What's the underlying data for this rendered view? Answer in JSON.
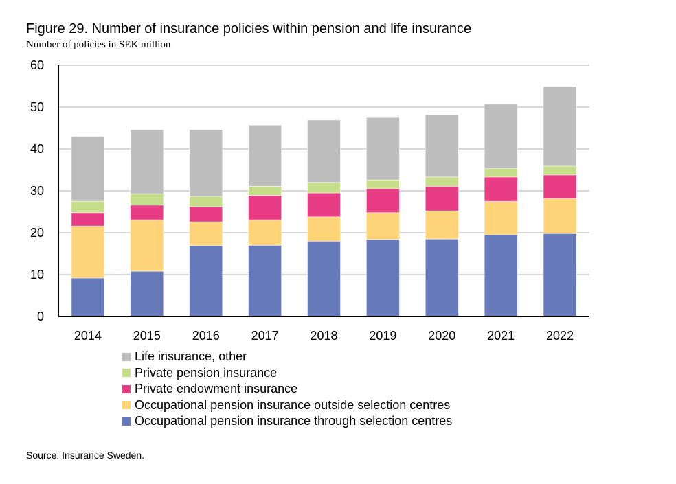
{
  "chart_data": {
    "type": "bar",
    "stacked": true,
    "title": "Figure 29. Number of insurance policies within pension and life insurance",
    "subtitle": "Number of policies in SEK million",
    "xlabel": "",
    "ylabel": "",
    "ylim": [
      0,
      60
    ],
    "yticks": [
      0,
      10,
      20,
      30,
      40,
      50,
      60
    ],
    "grid": true,
    "legend_position": "bottom",
    "categories": [
      "2014",
      "2015",
      "2016",
      "2017",
      "2018",
      "2019",
      "2020",
      "2021",
      "2022"
    ],
    "series": [
      {
        "name": "Occupational pension insurance through selection centres",
        "color": "#6679BB",
        "values": [
          9.2,
          10.8,
          16.9,
          17.0,
          18.0,
          18.4,
          18.5,
          19.5,
          19.8
        ]
      },
      {
        "name": "Occupational pension insurance outside selection centres",
        "color": "#FFD378",
        "values": [
          12.4,
          12.3,
          5.7,
          6.1,
          5.8,
          6.4,
          6.7,
          8.0,
          8.4
        ]
      },
      {
        "name": "Private endowment insurance",
        "color": "#E83C84",
        "values": [
          3.2,
          3.5,
          3.6,
          5.8,
          5.7,
          5.7,
          5.9,
          5.8,
          5.6
        ]
      },
      {
        "name": "Private pension insurance",
        "color": "#C6DD8A",
        "values": [
          2.7,
          2.7,
          2.5,
          2.2,
          2.5,
          2.1,
          2.2,
          2.1,
          2.1
        ]
      },
      {
        "name": "Life insurance, other",
        "color": "#BEBEBE",
        "values": [
          15.5,
          15.3,
          15.9,
          14.6,
          14.9,
          14.9,
          14.9,
          15.3,
          19.0
        ]
      }
    ],
    "legend_order": [
      4,
      3,
      2,
      1,
      0
    ],
    "source": "Source: Insurance Sweden."
  }
}
